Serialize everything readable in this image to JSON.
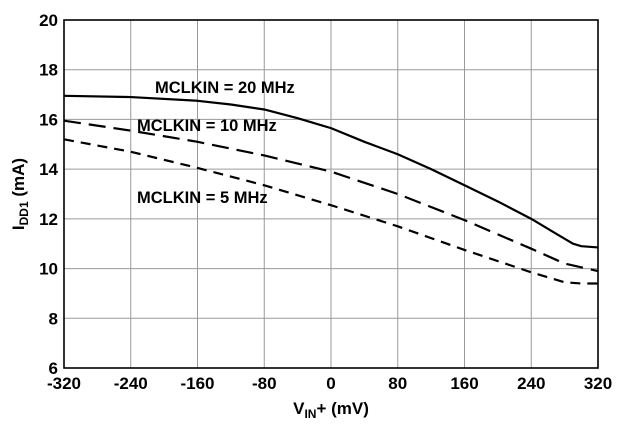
{
  "chart_data": {
    "type": "line",
    "xlabel": {
      "main": "V",
      "sub": "IN",
      "suffix": "+ (mV)"
    },
    "ylabel": {
      "main": "I",
      "sub": "DD1",
      "suffix": " (mA)"
    },
    "xlim": [
      -320,
      320
    ],
    "ylim": [
      6,
      20
    ],
    "xticks": [
      -320,
      -240,
      -160,
      -80,
      0,
      80,
      160,
      240,
      320
    ],
    "yticks": [
      6,
      8,
      10,
      12,
      14,
      16,
      18,
      20
    ],
    "grid": true,
    "legend": "none",
    "series": [
      {
        "name": "MCLKIN = 20 MHz",
        "style": "solid",
        "color": "#000000",
        "x": [
          -320,
          -240,
          -160,
          -120,
          -80,
          -40,
          0,
          40,
          80,
          120,
          160,
          200,
          240,
          270,
          290,
          300,
          320
        ],
        "y": [
          16.95,
          16.9,
          16.75,
          16.6,
          16.4,
          16.05,
          15.65,
          15.1,
          14.6,
          14.0,
          13.35,
          12.7,
          12.0,
          11.4,
          11.0,
          10.9,
          10.85
        ]
      },
      {
        "name": "MCLKIN = 10 MHz",
        "style": "long-dash",
        "color": "#000000",
        "x": [
          -320,
          -240,
          -160,
          -80,
          0,
          80,
          160,
          240,
          280,
          320
        ],
        "y": [
          15.95,
          15.55,
          15.1,
          14.55,
          13.9,
          13.0,
          11.95,
          10.8,
          10.2,
          9.9
        ]
      },
      {
        "name": "MCLKIN = 5 MHz",
        "style": "short-dash",
        "color": "#000000",
        "x": [
          -320,
          -240,
          -160,
          -80,
          0,
          80,
          160,
          240,
          280,
          300,
          320
        ],
        "y": [
          15.2,
          14.7,
          14.05,
          13.35,
          12.55,
          11.7,
          10.75,
          9.85,
          9.45,
          9.4,
          9.4
        ]
      }
    ],
    "annotations": [
      {
        "text": "MCLKIN = 20 MHz",
        "series": 0
      },
      {
        "text": "MCLKIN = 10 MHz",
        "series": 1
      },
      {
        "text": "MCLKIN = 5 MHz",
        "series": 2
      }
    ]
  }
}
